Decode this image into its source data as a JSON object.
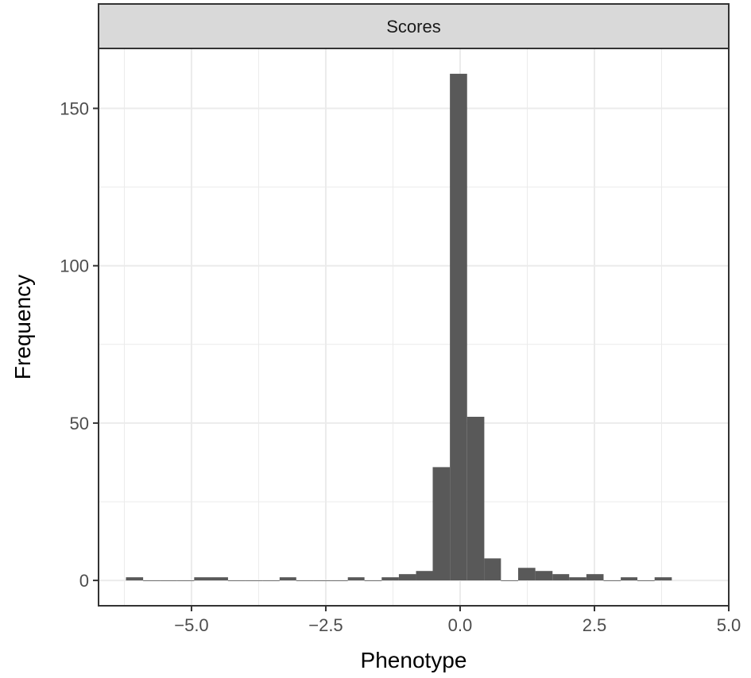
{
  "chart_data": {
    "type": "bar",
    "title": "",
    "facet_label": "Scores",
    "xlabel": "Phenotype",
    "ylabel": "Frequency",
    "xlim": [
      -6.73,
      5.0
    ],
    "ylim": [
      -8.05,
      169.05
    ],
    "x_ticks": [
      -5.0,
      -2.5,
      0.0,
      2.5,
      5.0
    ],
    "x_tick_labels": [
      "−5.0",
      "−2.5",
      "0.0",
      "2.5",
      "5.0"
    ],
    "y_ticks": [
      0,
      50,
      100,
      150
    ],
    "y_tick_labels": [
      "0",
      "50",
      "100",
      "150"
    ],
    "grid": true,
    "bar_color": "#595959",
    "bins": [
      {
        "x0": -6.22,
        "x1": -5.9,
        "count": 1
      },
      {
        "x0": -5.9,
        "x1": -5.59,
        "count": 0
      },
      {
        "x0": -5.59,
        "x1": -5.27,
        "count": 0
      },
      {
        "x0": -5.27,
        "x1": -4.95,
        "count": 0
      },
      {
        "x0": -4.95,
        "x1": -4.63,
        "count": 1
      },
      {
        "x0": -4.63,
        "x1": -4.32,
        "count": 1
      },
      {
        "x0": -4.32,
        "x1": -4.0,
        "count": 0
      },
      {
        "x0": -4.0,
        "x1": -3.68,
        "count": 0
      },
      {
        "x0": -3.68,
        "x1": -3.36,
        "count": 0
      },
      {
        "x0": -3.36,
        "x1": -3.05,
        "count": 1
      },
      {
        "x0": -3.05,
        "x1": -2.73,
        "count": 0
      },
      {
        "x0": -2.73,
        "x1": -2.41,
        "count": 0
      },
      {
        "x0": -2.41,
        "x1": -2.09,
        "count": 0
      },
      {
        "x0": -2.09,
        "x1": -1.78,
        "count": 1
      },
      {
        "x0": -1.78,
        "x1": -1.46,
        "count": 0
      },
      {
        "x0": -1.46,
        "x1": -1.14,
        "count": 1
      },
      {
        "x0": -1.14,
        "x1": -0.82,
        "count": 2
      },
      {
        "x0": -0.82,
        "x1": -0.51,
        "count": 3
      },
      {
        "x0": -0.51,
        "x1": -0.19,
        "count": 36
      },
      {
        "x0": -0.19,
        "x1": 0.13,
        "count": 161
      },
      {
        "x0": 0.13,
        "x1": 0.45,
        "count": 52
      },
      {
        "x0": 0.45,
        "x1": 0.76,
        "count": 7
      },
      {
        "x0": 0.76,
        "x1": 1.08,
        "count": 0
      },
      {
        "x0": 1.08,
        "x1": 1.4,
        "count": 4
      },
      {
        "x0": 1.4,
        "x1": 1.72,
        "count": 3
      },
      {
        "x0": 1.72,
        "x1": 2.03,
        "count": 2
      },
      {
        "x0": 2.03,
        "x1": 2.35,
        "count": 1
      },
      {
        "x0": 2.35,
        "x1": 2.67,
        "count": 2
      },
      {
        "x0": 2.67,
        "x1": 2.99,
        "count": 0
      },
      {
        "x0": 2.99,
        "x1": 3.3,
        "count": 1
      },
      {
        "x0": 3.3,
        "x1": 3.62,
        "count": 0
      },
      {
        "x0": 3.62,
        "x1": 3.94,
        "count": 1
      }
    ]
  }
}
